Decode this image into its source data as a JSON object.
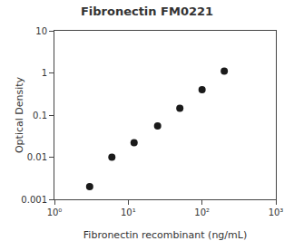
{
  "chart_data": {
    "type": "scatter",
    "title": "Fibronectin FM0221",
    "xlabel": "Fibronectin recombinant (ng/mL)",
    "ylabel": "Optical Density",
    "x": [
      3,
      6,
      12,
      25,
      50,
      100,
      200
    ],
    "values": [
      0.002,
      0.01,
      0.022,
      0.055,
      0.145,
      0.4,
      1.1
    ],
    "xlim": [
      1,
      1000
    ],
    "ylim": [
      0.001,
      10
    ],
    "log": true,
    "xticks": [
      {
        "value": 1,
        "label": "10⁰"
      },
      {
        "value": 10,
        "label": "10¹"
      },
      {
        "value": 100,
        "label": "10²"
      },
      {
        "value": 1000,
        "label": "10³"
      }
    ],
    "yticks": [
      0.001,
      0.01,
      0.1,
      1,
      10
    ],
    "marker": "circle",
    "color": "#1a1a1a",
    "grid": false
  }
}
